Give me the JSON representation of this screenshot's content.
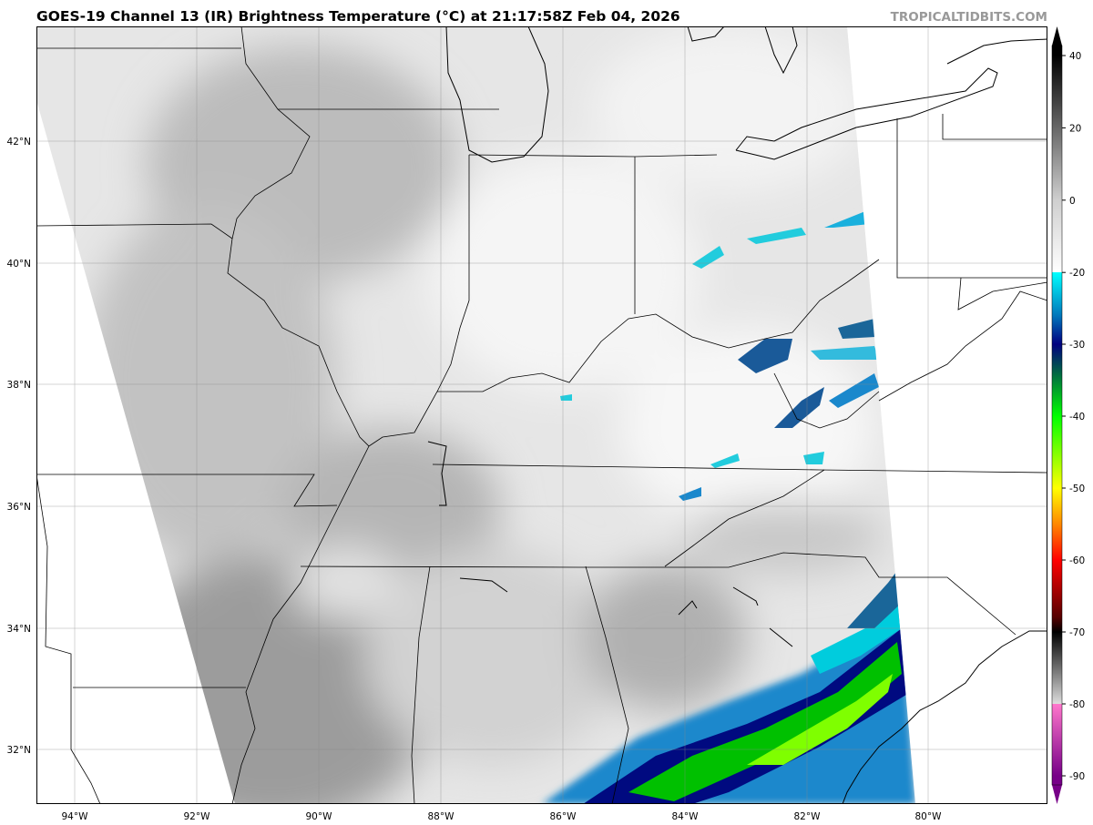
{
  "header": {
    "title": "GOES-19 Channel 13 (IR) Brightness Temperature (°C) at 21:17:58Z Feb 04, 2026",
    "brand": "TROPICALTIDBITS.COM"
  },
  "map": {
    "longitude_labels": [
      "94°W",
      "92°W",
      "90°W",
      "88°W",
      "86°W",
      "84°W",
      "82°W",
      "80°W"
    ],
    "latitude_labels": [
      "42°N",
      "40°N",
      "38°N",
      "36°N",
      "34°N",
      "32°N"
    ],
    "grid": true
  },
  "colorbar": {
    "tick_labels": [
      "40",
      "20",
      "0",
      "-20",
      "-30",
      "-40",
      "-50",
      "-60",
      "-70",
      "-80",
      "-90"
    ],
    "range": [
      -90,
      40
    ],
    "extend": "both",
    "stops": [
      {
        "value": 40,
        "color": "#000000"
      },
      {
        "value": 0,
        "color": "#cfcfcf"
      },
      {
        "value": -20,
        "color": "#ffffff"
      },
      {
        "value": -20,
        "color": "#00ffff"
      },
      {
        "value": -26,
        "color": "#0077bb"
      },
      {
        "value": -30,
        "color": "#000080"
      },
      {
        "value": -34,
        "color": "#006644"
      },
      {
        "value": -40,
        "color": "#00ff00"
      },
      {
        "value": -50,
        "color": "#ffff00"
      },
      {
        "value": -55,
        "color": "#ff8800"
      },
      {
        "value": -60,
        "color": "#ff0000"
      },
      {
        "value": -68,
        "color": "#550000"
      },
      {
        "value": -70,
        "color": "#000000"
      },
      {
        "value": -80,
        "color": "#dddddd"
      },
      {
        "value": -80,
        "color": "#ff77cc"
      },
      {
        "value": -90,
        "color": "#770088"
      }
    ]
  }
}
